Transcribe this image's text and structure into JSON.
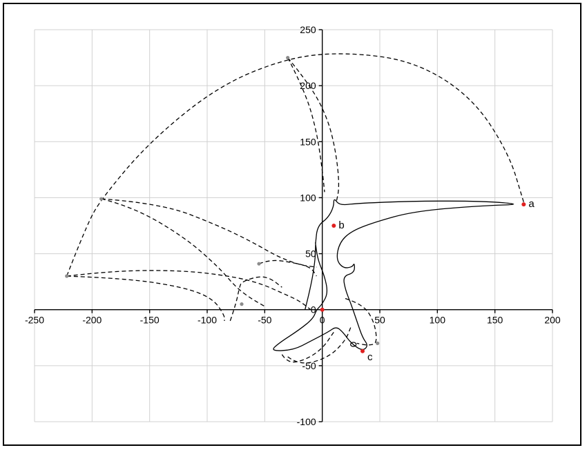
{
  "chart_data": {
    "type": "scatter",
    "title": "",
    "xlabel": "",
    "ylabel": "",
    "xlim": [
      -250,
      200
    ],
    "ylim": [
      -100,
      250
    ],
    "x_ticks": [
      -250,
      -200,
      -150,
      -100,
      -50,
      0,
      50,
      100,
      150,
      200
    ],
    "y_ticks": [
      -100,
      -50,
      0,
      50,
      100,
      150,
      200,
      250
    ],
    "x_tick_labels": [
      "-250",
      "-200",
      "-150",
      "-100",
      "-50",
      "0",
      "50",
      "100",
      "150",
      "200"
    ],
    "y_tick_labels": [
      "-100",
      "-50",
      "0",
      "50",
      "100",
      "150",
      "200",
      "250"
    ],
    "grid": true,
    "legend": "none",
    "labeled_points": [
      {
        "label": "a",
        "x": 175,
        "y": 94,
        "color": "#e02020"
      },
      {
        "label": "b",
        "x": 10,
        "y": 75,
        "color": "#e02020"
      },
      {
        "label": "c",
        "x": 35,
        "y": -37,
        "color": "#e02020"
      },
      {
        "label": "",
        "x": 0,
        "y": 0,
        "color": "#e02020"
      }
    ],
    "grey_points": [
      {
        "x": -30,
        "y": 225
      },
      {
        "x": -192,
        "y": 99
      },
      {
        "x": -222,
        "y": 30
      },
      {
        "x": -55,
        "y": 41
      },
      {
        "x": -70,
        "y": 5
      },
      {
        "x": 48,
        "y": -30
      }
    ],
    "colors": {
      "highlight": "#e02020",
      "secondary": "#8c8c8c",
      "grid": "#d0d0d0"
    }
  }
}
